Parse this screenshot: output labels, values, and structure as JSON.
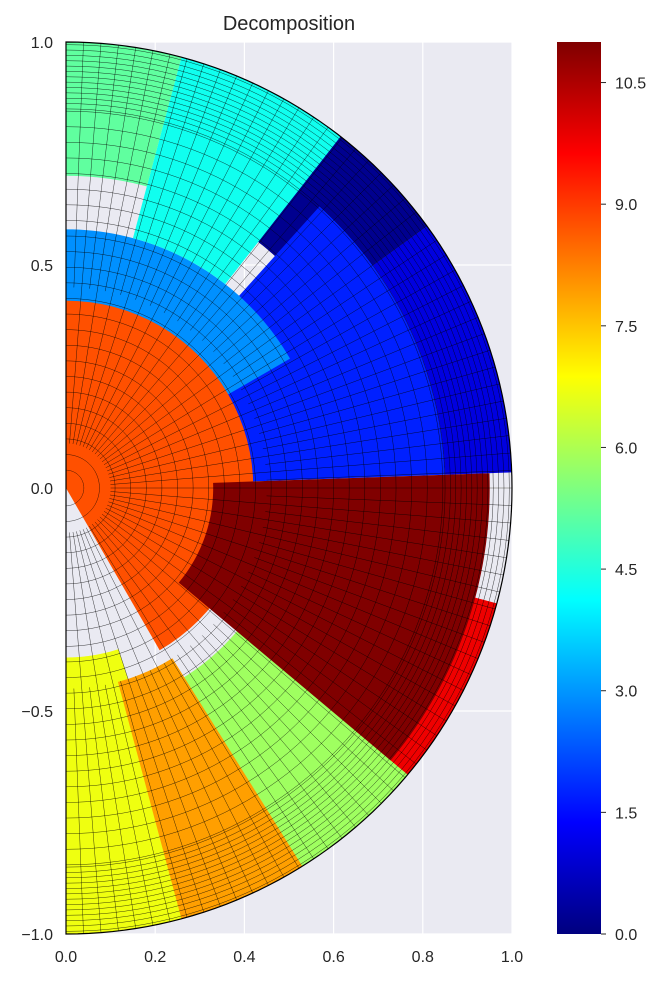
{
  "chart_data": {
    "type": "heatmap",
    "title": "Decomposition",
    "xlabel": "",
    "ylabel": "",
    "xlim": [
      0.0,
      1.0
    ],
    "ylim": [
      -1.0,
      1.0
    ],
    "grid": true,
    "x_ticks": [
      0.0,
      0.2,
      0.4,
      0.6,
      0.8,
      1.0
    ],
    "y_ticks": [
      -1.0,
      -0.5,
      0.0,
      0.5,
      1.0
    ],
    "x_tick_labels": [
      "0.0",
      "0.2",
      "0.4",
      "0.6",
      "0.8",
      "1.0"
    ],
    "y_tick_labels": [
      "−1.0",
      "−0.5",
      "0.0",
      "0.5",
      "1.0"
    ],
    "domain": "half-disk of radius 1 (x ≥ 0)",
    "colormap": "jet",
    "color_range": [
      0,
      11
    ],
    "colorbar_ticks": [
      0.0,
      1.5,
      3.0,
      4.5,
      6.0,
      7.5,
      9.0,
      10.5
    ],
    "colorbar_tick_labels": [
      "0.0",
      "1.5",
      "3.0",
      "4.5",
      "6.0",
      "7.5",
      "9.0",
      "10.5"
    ],
    "partitions": [
      {
        "id": 0,
        "polar_r": [
          0.7,
          1.0
        ],
        "polar_angle_deg": [
          36,
          59
        ],
        "color": "#00008f"
      },
      {
        "id": 1,
        "polar_r": [
          0.85,
          1.0
        ],
        "polar_angle_deg": [
          2,
          36
        ],
        "color": "#0000df"
      },
      {
        "id": 2,
        "polar_r": [
          0.4,
          0.85
        ],
        "polar_angle_deg": [
          2,
          48
        ],
        "color": "#0020ff"
      },
      {
        "id": 3,
        "polar_r": [
          0.0,
          0.58
        ],
        "polar_angle_deg": [
          30,
          90
        ],
        "color": "#0090ff"
      },
      {
        "id": 4,
        "polar_r": [
          0.58,
          1.0
        ],
        "polar_angle_deg": [
          52,
          75
        ],
        "color": "#10ffef"
      },
      {
        "id": 5,
        "polar_r": [
          0.7,
          1.0
        ],
        "polar_angle_deg": [
          75,
          90
        ],
        "color": "#60ff9f"
      },
      {
        "id": 6,
        "polar_r": [
          0.5,
          1.0
        ],
        "polar_angle_deg": [
          -62,
          -33
        ],
        "color": "#9fff60"
      },
      {
        "id": 7,
        "polar_r": [
          0.38,
          1.0
        ],
        "polar_angle_deg": [
          -90,
          -72
        ],
        "color": "#efff10"
      },
      {
        "id": 8,
        "polar_r": [
          0.45,
          1.0
        ],
        "polar_angle_deg": [
          -75,
          -58
        ],
        "color": "#ff9f00"
      },
      {
        "id": 9,
        "polar_r": [
          0.0,
          0.42
        ],
        "polar_angle_deg": [
          -60,
          90
        ],
        "color": "#ff5000"
      },
      {
        "id": 10,
        "polar_r": [
          0.85,
          1.0
        ],
        "polar_angle_deg": [
          -40,
          -15
        ],
        "color": "#ef0000"
      },
      {
        "id": 11,
        "polar_r": [
          0.33,
          0.95
        ],
        "polar_angle_deg": [
          -40,
          2
        ],
        "color": "#800000"
      }
    ],
    "jet_stops": [
      "#00007f",
      "#0000ff",
      "#007fff",
      "#00ffff",
      "#7fff7f",
      "#ffff00",
      "#ff7f00",
      "#ff0000",
      "#7f0000"
    ]
  }
}
